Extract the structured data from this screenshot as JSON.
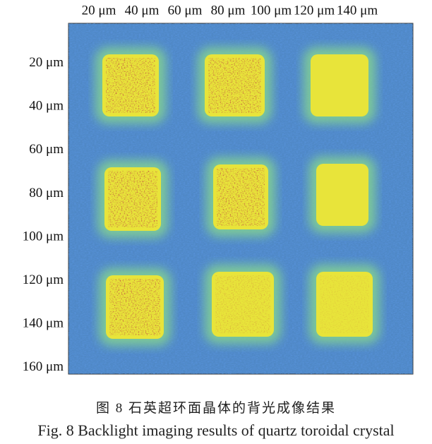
{
  "figure": {
    "xlim": [
      0,
      160
    ],
    "ylim": [
      0,
      162
    ],
    "xticks": [
      {
        "value": 20,
        "label": "20 μm"
      },
      {
        "value": 40,
        "label": "40 μm"
      },
      {
        "value": 60,
        "label": "60 μm"
      },
      {
        "value": 80,
        "label": "80 μm"
      },
      {
        "value": 100,
        "label": "100 μm"
      },
      {
        "value": 120,
        "label": "120 μm"
      },
      {
        "value": 140,
        "label": "140 μm"
      }
    ],
    "yticks": [
      {
        "value": 20,
        "label": "20 μm"
      },
      {
        "value": 40,
        "label": "40 μm"
      },
      {
        "value": 60,
        "label": "60 μm"
      },
      {
        "value": 80,
        "label": "80 μm"
      },
      {
        "value": 100,
        "label": "100 μm"
      },
      {
        "value": 120,
        "label": "120 μm"
      },
      {
        "value": 140,
        "label": "140 μm"
      },
      {
        "value": 160,
        "label": "160 μm"
      }
    ],
    "caption_cn": "图 8  石英超环面晶体的背光成像结果",
    "caption_en": "Fig. 8  Backlight imaging results of quartz toroidal crystal"
  }
}
